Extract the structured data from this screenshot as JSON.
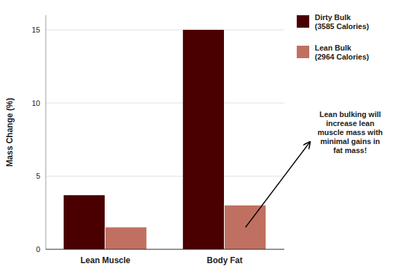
{
  "chart_data": {
    "type": "bar",
    "categories": [
      "Lean Muscle",
      "Body Fat"
    ],
    "series": [
      {
        "name": "Dirty Bulk\n(3585 Calories)",
        "color": "#4a0000",
        "values": [
          3.7,
          15.0
        ]
      },
      {
        "name": "Lean Bulk\n(2964 Calories)",
        "color": "#c07060",
        "values": [
          1.5,
          3.0
        ]
      }
    ],
    "ylabel": "Mass Change (%)",
    "ylim": [
      0,
      16
    ],
    "yticks": [
      0,
      5,
      10,
      15
    ],
    "grid": true,
    "legend": "right",
    "annotations": [
      "Lean bulking will\nincrease lean\nmuscle mass with\nminimal gains in\nfat mass!"
    ]
  }
}
